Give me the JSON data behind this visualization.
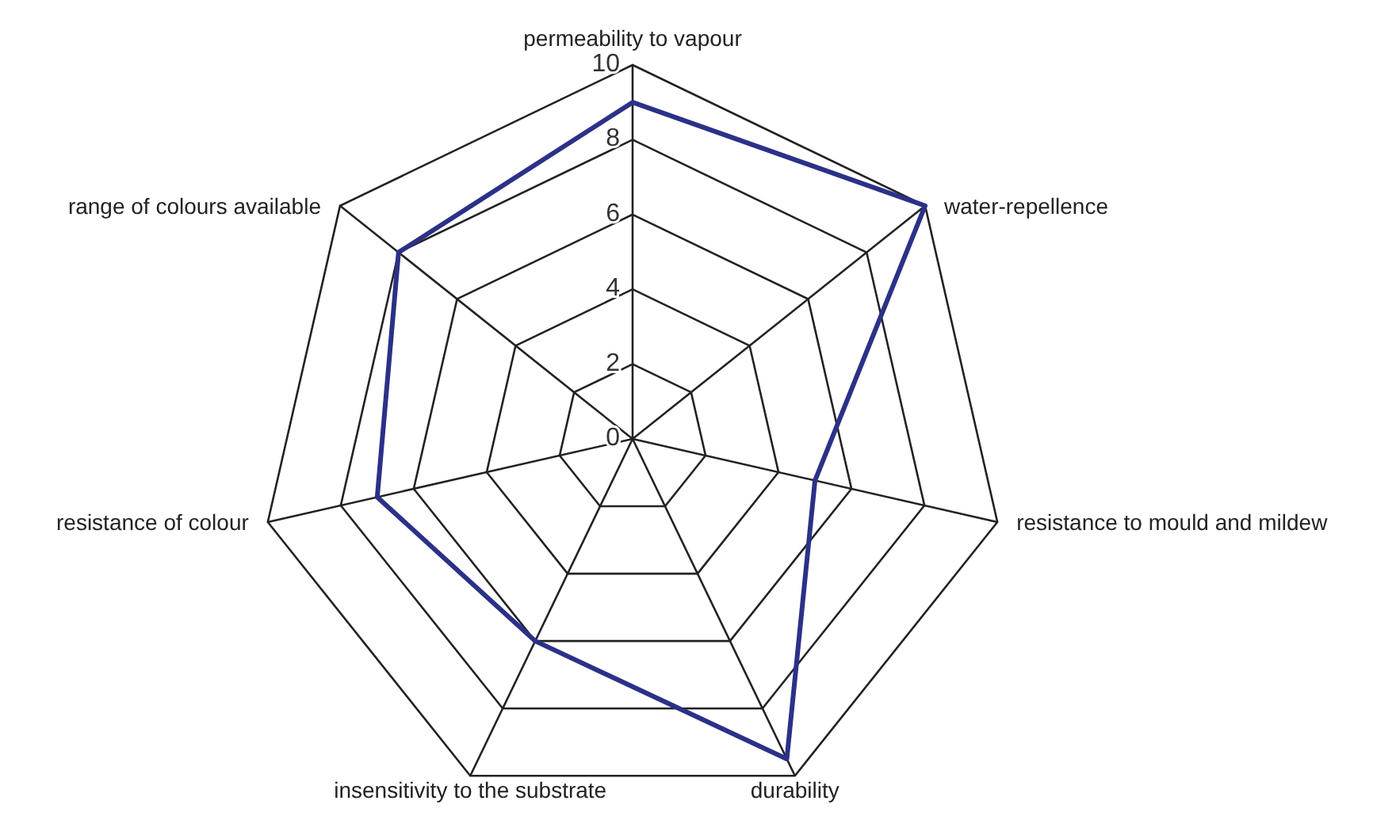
{
  "chart_data": {
    "type": "radar",
    "categories": [
      "permeability to vapour",
      "water-repellence",
      "resistance to mould and mildew",
      "durability",
      "insensitivity to the substrate",
      "resistance of colour",
      "range of colours available"
    ],
    "series": [
      {
        "color": "#2b3187",
        "values": [
          9,
          10,
          5,
          9.5,
          6,
          7,
          8
        ]
      }
    ],
    "ylim": [
      0,
      10
    ],
    "yticks": [
      0,
      2,
      4,
      6,
      8,
      10
    ],
    "grid": true,
    "marker": "none",
    "line_style": "solid"
  }
}
